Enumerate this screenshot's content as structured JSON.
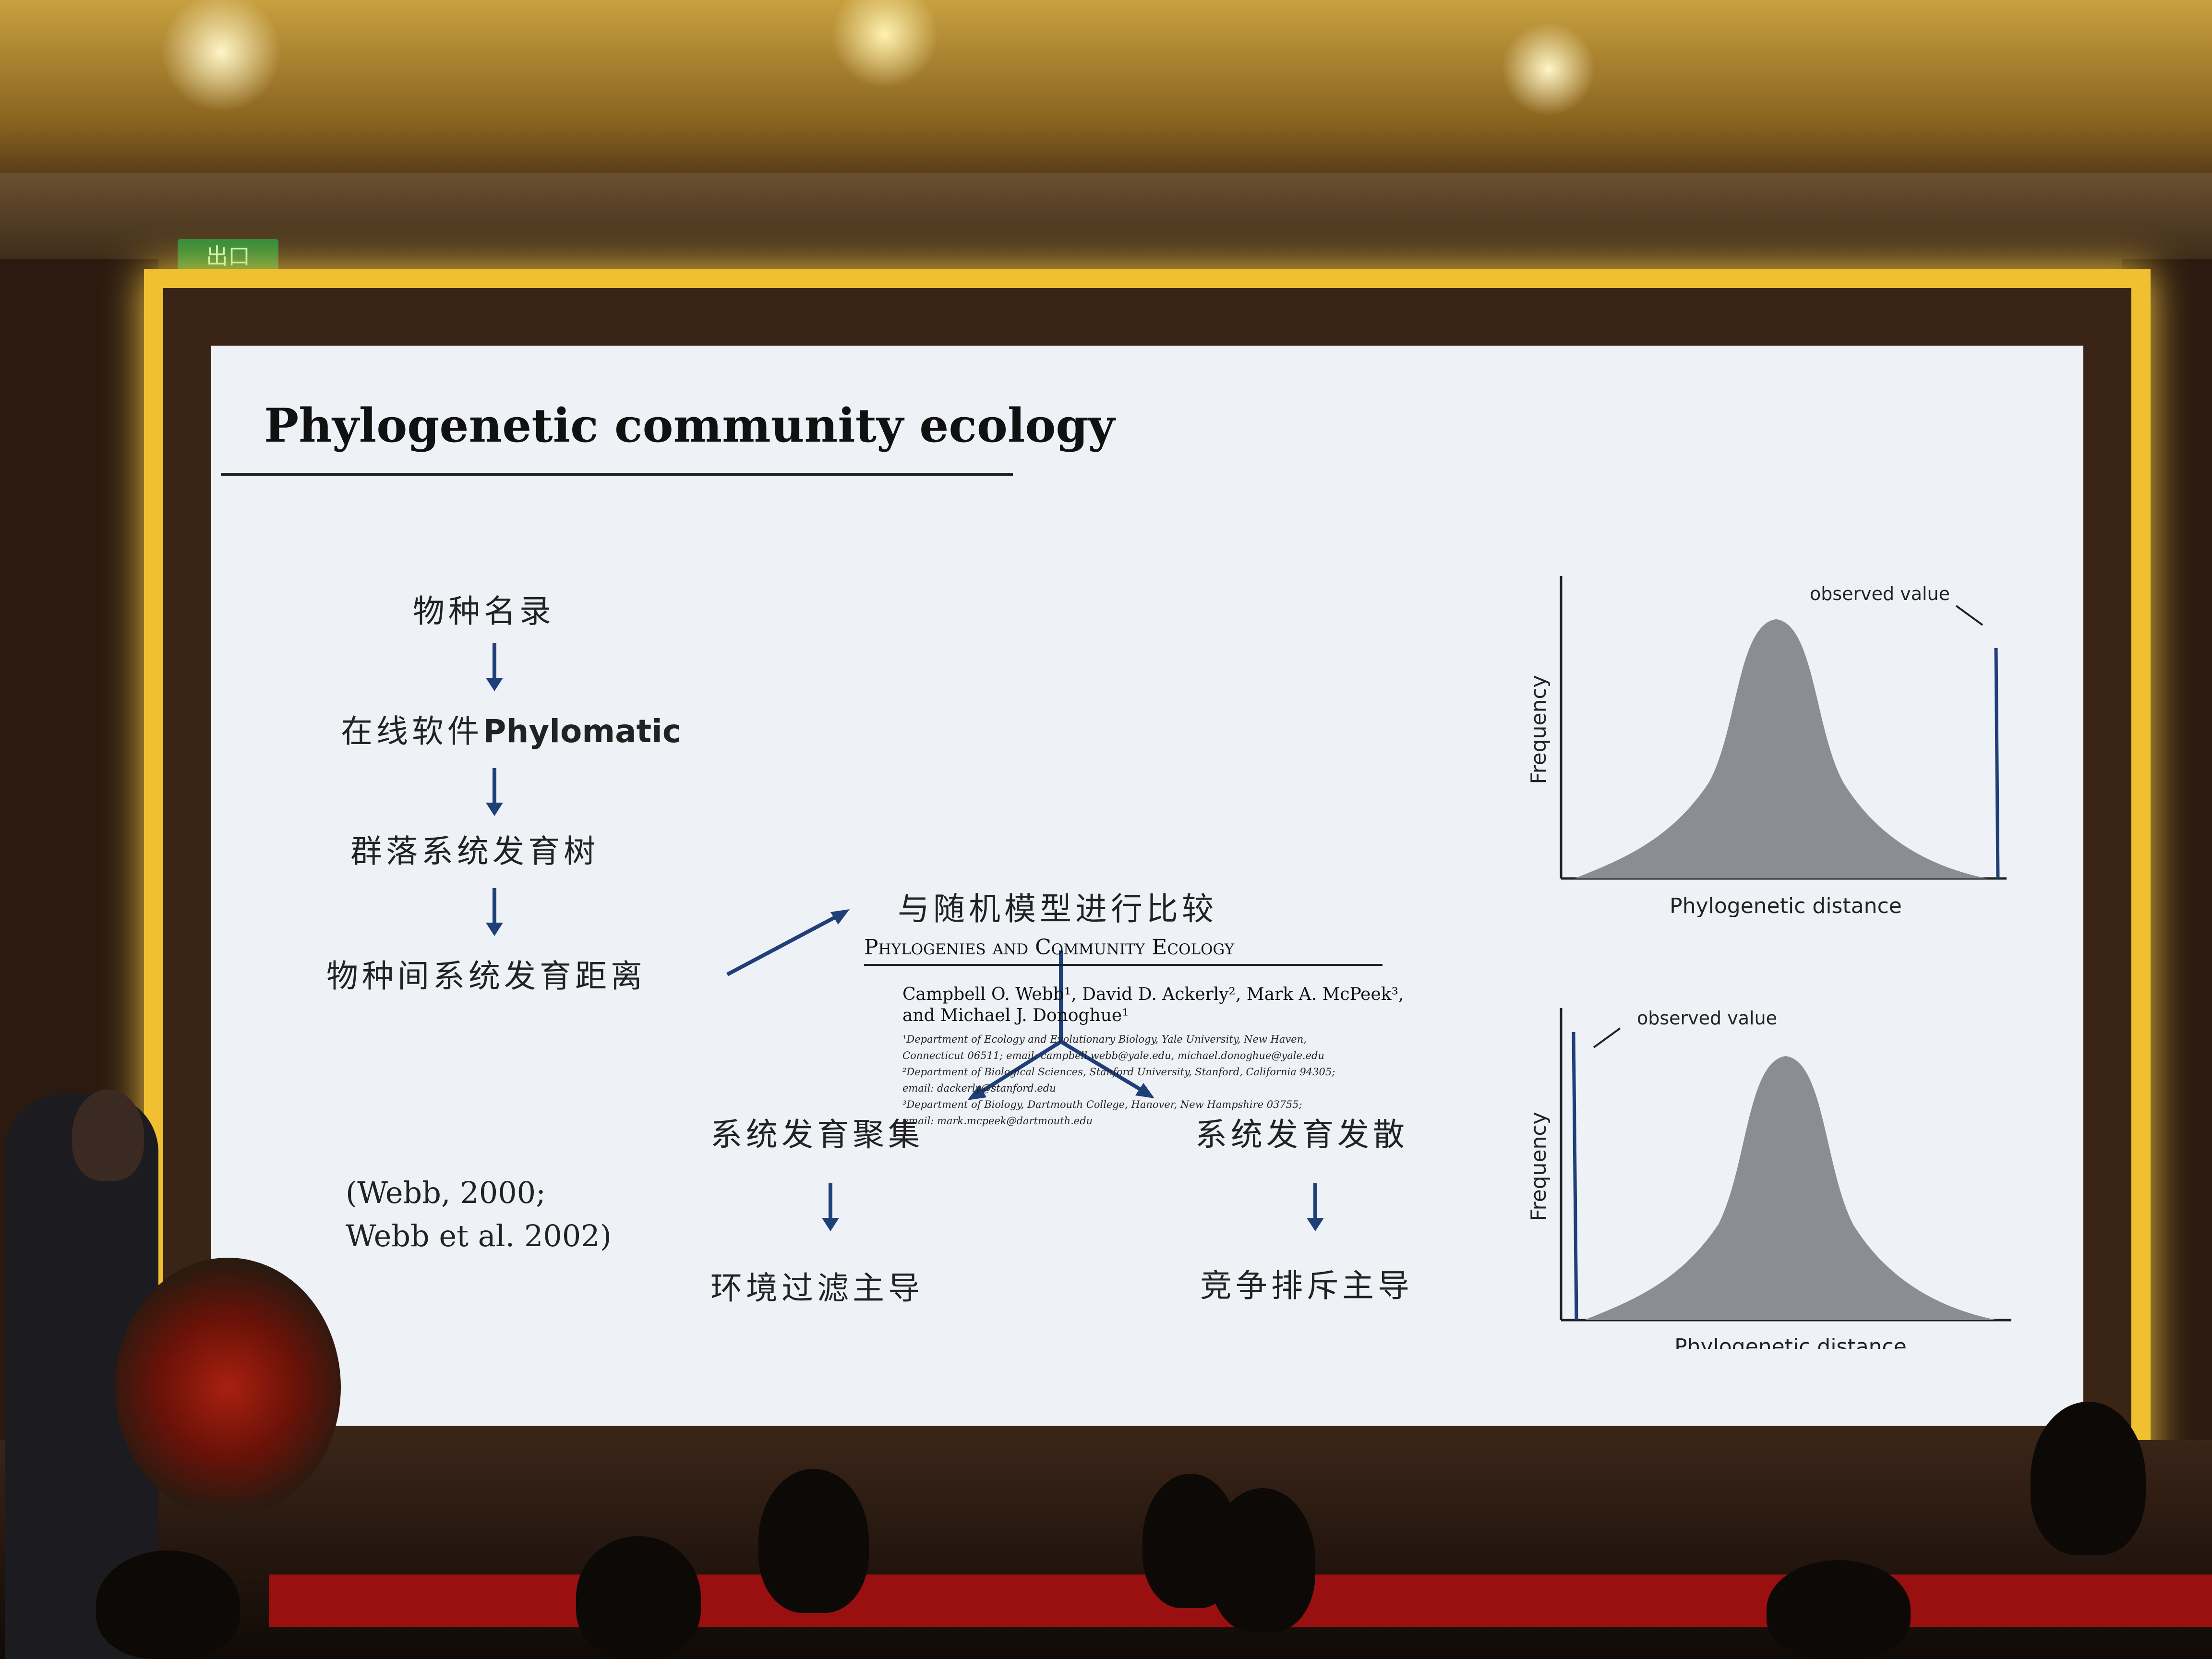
{
  "slide": {
    "title": "Phylogenetic community ecology",
    "flow": {
      "step1": "物种名录",
      "step2_prefix": "在线软件",
      "step2_bold": "Phylomatic",
      "step3": "群落系统发育树",
      "step4": "物种间系统发育距离",
      "compare": "与随机模型进行比较",
      "left_branch": "系统发育聚集",
      "right_branch": "系统发育发散",
      "left_result": "环境过滤主导",
      "right_result": "竞争排斥主导"
    },
    "citation": "(Webb, 2000;\nWebb et al. 2002)",
    "paper": {
      "title": "Phylogenies and Community Ecology",
      "authors_line1": "Campbell O. Webb¹, David D. Ackerly², Mark A. McPeek³,",
      "authors_line2": "and Michael J. Donoghue¹",
      "aff1": "¹Department of Ecology and Evolutionary Biology, Yale University, New Haven,",
      "aff2": "Connecticut 06511; email: campbell.webb@yale.edu, michael.donoghue@yale.edu",
      "aff3": "²Department of Biological Sciences, Stanford University, Stanford, California 94305;",
      "aff4": "email: dackerly@stanford.edu",
      "aff5": "³Department of Biology, Dartmouth College, Hanover, New Hampshire 03755;",
      "aff6": "email: mark.mcpeek@dartmouth.edu"
    },
    "charts": {
      "top": {
        "ylabel": "Frequency",
        "xlabel": "Phylogenetic distance",
        "annotation": "observed value",
        "observed_side": "right"
      },
      "bottom": {
        "ylabel": "Frequency",
        "xlabel": "Phylogenetic distance",
        "annotation": "observed value",
        "observed_side": "left"
      }
    },
    "colors": {
      "accent": "#1f3f78",
      "distribution": "#8a8d92",
      "background": "#eef1f6"
    }
  },
  "room": {
    "exit_sign": "出口"
  }
}
